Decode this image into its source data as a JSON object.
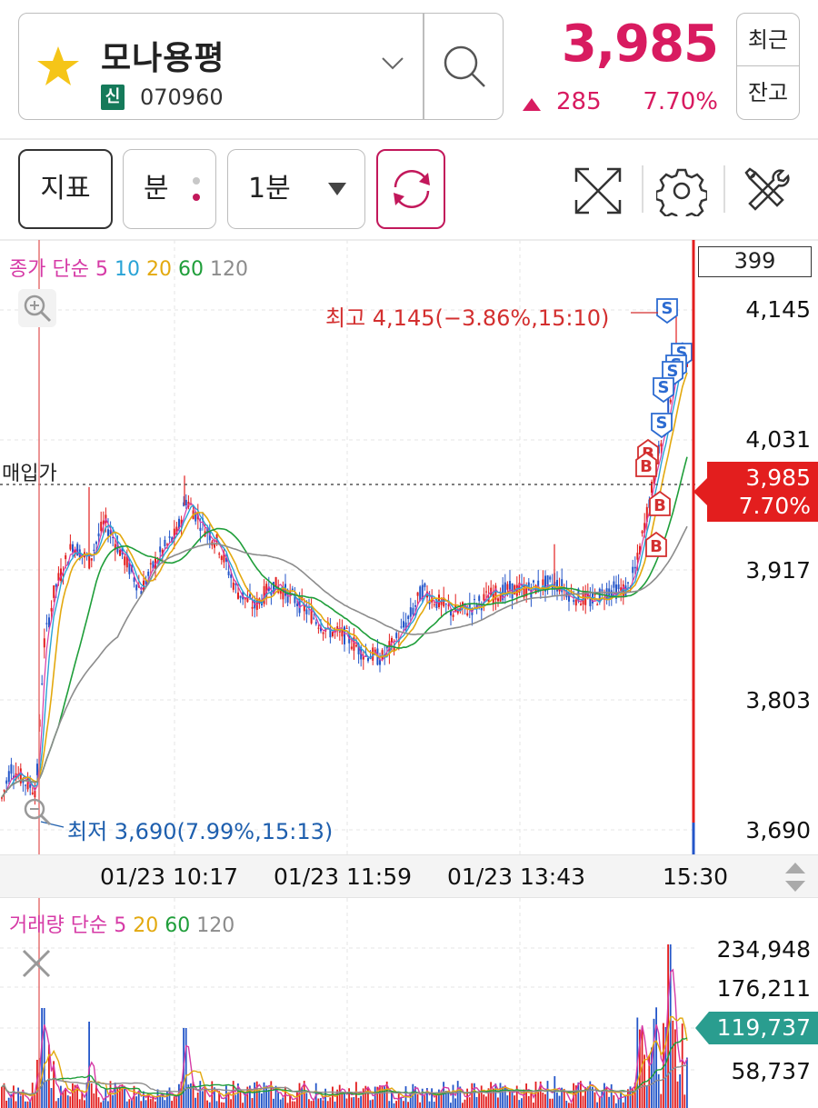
{
  "header": {
    "stock_name": "모나용평",
    "credit_badge": "신",
    "stock_code": "070960",
    "price": "3,985",
    "change": "285",
    "change_pct": "7.70%",
    "recent_btn": "최근",
    "balance_btn": "잔고"
  },
  "toolbar": {
    "indicator_btn": "지표",
    "minute_btn": "분",
    "interval": "1분"
  },
  "chart": {
    "price_legend": {
      "prefix": "종가 단순",
      "ma5": "5",
      "ma10": "10",
      "ma20": "20",
      "ma60": "60",
      "ma120": "120"
    },
    "volume_legend": {
      "prefix": "거래량 단순",
      "ma5": "5",
      "ma20": "20",
      "ma60": "60",
      "ma120": "120"
    },
    "cursor_count": "399",
    "price_axis": [
      "4,145",
      "4,031",
      "3,917",
      "3,803",
      "3,690"
    ],
    "current_price_tag": "3,985",
    "current_pct_tag": "7.70%",
    "high_label": "최고 4,145(−3.86%,15:10)",
    "low_label": "최저 3,690(7.99%,15:13)",
    "buy_price_label": "매입가",
    "time_axis": [
      "01/23 10:17",
      "01/23 11:59",
      "01/23 13:43",
      "15:30"
    ],
    "volume_axis": [
      "234,948",
      "176,211",
      "58,737"
    ],
    "volume_tag": "119,737",
    "markers": {
      "sell": "S",
      "buy": "B"
    }
  },
  "colors": {
    "accent_up": "#d81b60",
    "ma5": "#d63aa6",
    "ma10": "#29a3d6",
    "ma20": "#e3a90f",
    "ma60": "#1f9e3a",
    "ma120": "#8c8c8c",
    "candle_up": "#e31e1e",
    "candle_down": "#2456c9"
  },
  "chart_data": {
    "type": "candlestick",
    "title": "모나용평 1분",
    "y_range": [
      3690,
      4145
    ],
    "high": {
      "value": 4145,
      "time": "15:10"
    },
    "low": {
      "value": 3690,
      "time": "15:13"
    },
    "current": 3985,
    "x_ticks": [
      "01/23 10:17",
      "01/23 11:59",
      "01/23 13:43",
      "15:30"
    ]
  }
}
